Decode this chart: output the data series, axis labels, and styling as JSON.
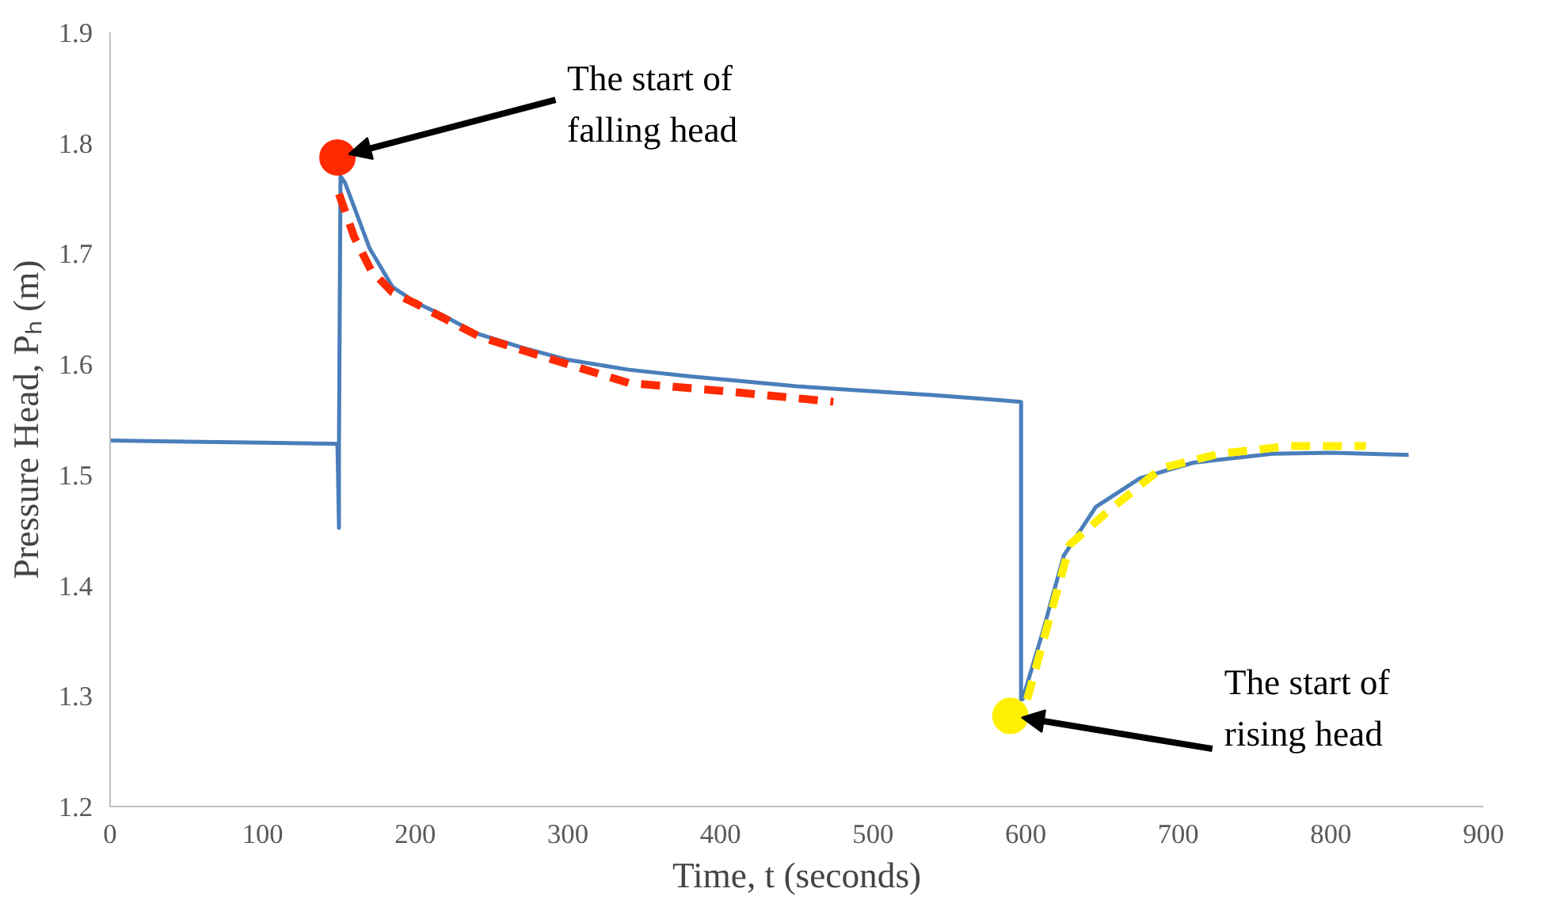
{
  "chart_data": {
    "type": "line",
    "xlabel": "Time, t (seconds)",
    "ylabel": "Pressure Head, Pₕ (m)",
    "xlim": [
      0,
      900
    ],
    "ylim": [
      1.2,
      1.9
    ],
    "xticks": [
      0,
      100,
      200,
      300,
      400,
      500,
      600,
      700,
      800,
      900
    ],
    "yticks": [
      1.2,
      1.3,
      1.4,
      1.5,
      1.6,
      1.7,
      1.8,
      1.9
    ],
    "grid": false,
    "series": [
      {
        "color": "#4a7ebb",
        "line_style": "solid",
        "x": [
          0,
          50,
          100,
          149,
          150,
          150,
          151,
          154,
          170,
          185,
          200,
          217,
          240,
          270,
          300,
          340,
          380,
          411,
          450,
          495,
          540,
          597,
          597,
          598,
          611,
          625,
          646,
          675,
          710,
          762,
          800,
          851
        ],
        "values": [
          1.531,
          1.53,
          1.529,
          1.528,
          1.452,
          1.528,
          1.77,
          1.764,
          1.705,
          1.67,
          1.656,
          1.645,
          1.628,
          1.615,
          1.604,
          1.595,
          1.589,
          1.585,
          1.58,
          1.576,
          1.572,
          1.566,
          1.297,
          1.297,
          1.357,
          1.427,
          1.471,
          1.497,
          1.511,
          1.519,
          1.52,
          1.518
        ]
      },
      {
        "color": "#ff2a00",
        "line_style": "dashed",
        "x": [
          150,
          160,
          171,
          185,
          200,
          242,
          281,
          340,
          400,
          474
        ],
        "values": [
          1.754,
          1.715,
          1.685,
          1.665,
          1.655,
          1.625,
          1.608,
          1.583,
          1.576,
          1.566
        ]
      },
      {
        "color": "#ffef00",
        "line_style": "dashed",
        "x": [
          601,
          618,
          629,
          654,
          689,
          727,
          773,
          823
        ],
        "values": [
          1.297,
          1.382,
          1.437,
          1.467,
          1.506,
          1.519,
          1.526,
          1.526
        ]
      },
      {
        "type": "scatter",
        "color": "#ff2a00",
        "marker": "circle",
        "x": [
          149
        ],
        "values": [
          1.787
        ]
      },
      {
        "type": "scatter",
        "color": "#ffef00",
        "marker": "circle",
        "x": [
          590
        ],
        "values": [
          1.282
        ]
      }
    ],
    "annotations": [
      {
        "text": "The start of\nfalling head",
        "x": 149,
        "y": 1.787
      },
      {
        "text": "The start of\nrising head",
        "x": 590,
        "y": 1.282
      }
    ]
  }
}
